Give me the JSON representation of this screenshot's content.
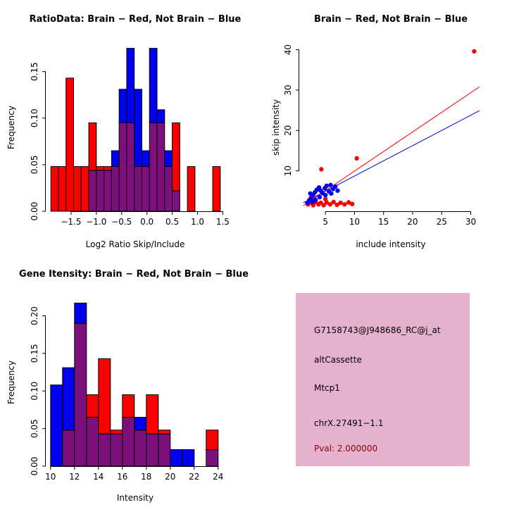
{
  "colors": {
    "red": "#fb0000",
    "blue": "#0000f0",
    "overlap": "#7d107d",
    "axis": "#000000",
    "info_bg": "#e4b2cc",
    "pval_text": "#8b0000"
  },
  "chart_data": [
    {
      "type": "histogram",
      "title": "RatioData: Brain − Red, Not Brain − Blue",
      "xlabel": "Log2 Ratio Skip/Include",
      "ylabel": "Frequency",
      "xlim": [
        -2.0,
        1.55
      ],
      "ylim": [
        0,
        0.18
      ],
      "xticks": [
        -1.5,
        -1.0,
        -0.5,
        0.0,
        0.5,
        1.0,
        1.5
      ],
      "xtick_labels": [
        "−1.5",
        "−1.0",
        "−0.5",
        "0.0",
        "0.5",
        "1.0",
        "1.5"
      ],
      "yticks": [
        0,
        0.05,
        0.1,
        0.15
      ],
      "ytick_labels": [
        "0.00",
        "0.05",
        "0.10",
        "0.15"
      ],
      "bin_width": 0.15,
      "grid": false,
      "series": [
        {
          "name": "Brain",
          "color": "red",
          "bars": [
            [
              -1.9,
              0.048
            ],
            [
              -1.75,
              0.048
            ],
            [
              -1.6,
              0.143
            ],
            [
              -1.45,
              0.048
            ],
            [
              -1.3,
              0.048
            ],
            [
              -1.15,
              0.095
            ],
            [
              -1.0,
              0.048
            ],
            [
              -0.85,
              0.048
            ],
            [
              -0.7,
              0.048
            ],
            [
              -0.55,
              0.095
            ],
            [
              -0.4,
              0.095
            ],
            [
              -0.25,
              0.048
            ],
            [
              -0.1,
              0.048
            ],
            [
              0.05,
              0.095
            ],
            [
              0.2,
              0.095
            ],
            [
              0.35,
              0.048
            ],
            [
              0.5,
              0.095
            ],
            [
              0.8,
              0.048
            ],
            [
              1.3,
              0.048
            ]
          ]
        },
        {
          "name": "Not Brain",
          "color": "blue",
          "bars": [
            [
              -1.15,
              0.044
            ],
            [
              -1.0,
              0.044
            ],
            [
              -0.85,
              0.044
            ],
            [
              -0.7,
              0.065
            ],
            [
              -0.55,
              0.131
            ],
            [
              -0.4,
              0.175
            ],
            [
              -0.25,
              0.131
            ],
            [
              -0.1,
              0.065
            ],
            [
              0.05,
              0.175
            ],
            [
              0.2,
              0.109
            ],
            [
              0.35,
              0.065
            ],
            [
              0.5,
              0.022
            ]
          ]
        }
      ]
    },
    {
      "type": "scatter",
      "title": "Brain − Red, Not Brain − Blue",
      "xlabel": "include intensity",
      "ylabel": "skip intensity",
      "xlim": [
        0.5,
        32
      ],
      "ylim": [
        0,
        41.5
      ],
      "xticks": [
        5,
        10,
        15,
        20,
        25,
        30
      ],
      "xtick_labels": [
        "5",
        "10",
        "15",
        "20",
        "25",
        "30"
      ],
      "yticks": [
        10,
        20,
        30,
        40
      ],
      "ytick_labels": [
        "10",
        "20",
        "30",
        "40"
      ],
      "grid": false,
      "series": [
        {
          "name": "Brain",
          "color": "red",
          "points": [
            [
              30.6,
              39.6
            ],
            [
              10.4,
              13.1
            ],
            [
              4.3,
              10.4
            ],
            [
              2.0,
              1.7
            ],
            [
              2.4,
              2.1
            ],
            [
              2.9,
              1.5
            ],
            [
              3.3,
              2.3
            ],
            [
              3.8,
              1.7
            ],
            [
              4.2,
              2.1
            ],
            [
              4.7,
              1.5
            ],
            [
              5.2,
              2.2
            ],
            [
              5.8,
              1.7
            ],
            [
              6.4,
              2.3
            ],
            [
              7.0,
              1.6
            ],
            [
              7.6,
              2.1
            ],
            [
              8.3,
              1.7
            ],
            [
              9.0,
              2.2
            ],
            [
              9.6,
              1.8
            ],
            [
              3.1,
              3.1
            ],
            [
              2.3,
              2.7
            ],
            [
              5.0,
              3.0
            ]
          ]
        },
        {
          "name": "Not Brain",
          "color": "blue",
          "points": [
            [
              1.9,
              2.1
            ],
            [
              2.2,
              2.7
            ],
            [
              2.5,
              3.3
            ],
            [
              2.9,
              4.1
            ],
            [
              3.2,
              4.7
            ],
            [
              3.5,
              5.3
            ],
            [
              3.9,
              5.9
            ],
            [
              4.2,
              5.1
            ],
            [
              4.5,
              4.5
            ],
            [
              4.9,
              5.7
            ],
            [
              5.2,
              6.3
            ],
            [
              5.6,
              4.9
            ],
            [
              5.9,
              6.5
            ],
            [
              6.3,
              5.5
            ],
            [
              6.7,
              6.1
            ],
            [
              7.1,
              5.1
            ],
            [
              4.0,
              3.5
            ],
            [
              3.3,
              2.8
            ],
            [
              2.8,
              2.3
            ],
            [
              5.0,
              4.0
            ],
            [
              6.0,
              4.4
            ],
            [
              2.4,
              4.4
            ]
          ]
        }
      ],
      "lines": [
        {
          "name": "brain-fit-line",
          "color": "red",
          "x1": 1.2,
          "y1": 1.4,
          "x2": 31.5,
          "y2": 30.8
        },
        {
          "name": "notbrain-fit-line",
          "color": "blue",
          "x1": 1.2,
          "y1": 2.1,
          "x2": 31.5,
          "y2": 24.9
        }
      ]
    },
    {
      "type": "histogram",
      "title": "Gene Itensity: Brain − Red, Not Brain − Blue",
      "xlabel": "Intensity",
      "ylabel": "Frequency",
      "xlim": [
        9.6,
        24.6
      ],
      "ylim": [
        0,
        0.222
      ],
      "xticks": [
        10,
        12,
        14,
        16,
        18,
        20,
        22,
        24
      ],
      "xtick_labels": [
        "10",
        "12",
        "14",
        "16",
        "18",
        "20",
        "22",
        "24"
      ],
      "yticks": [
        0,
        0.05,
        0.1,
        0.15,
        0.2
      ],
      "ytick_labels": [
        "0.00",
        "0.05",
        "0.10",
        "0.15",
        "0.20"
      ],
      "bin_width": 1,
      "grid": false,
      "series": [
        {
          "name": "Brain",
          "color": "red",
          "bars": [
            [
              11,
              0.048
            ],
            [
              12,
              0.19
            ],
            [
              13,
              0.095
            ],
            [
              14,
              0.143
            ],
            [
              15,
              0.048
            ],
            [
              16,
              0.095
            ],
            [
              17,
              0.048
            ],
            [
              18,
              0.095
            ],
            [
              19,
              0.048
            ],
            [
              23,
              0.048
            ]
          ]
        },
        {
          "name": "Not Brain",
          "color": "blue",
          "bars": [
            [
              10,
              0.108
            ],
            [
              11,
              0.131
            ],
            [
              12,
              0.217
            ],
            [
              13,
              0.065
            ],
            [
              14,
              0.043
            ],
            [
              15,
              0.043
            ],
            [
              16,
              0.065
            ],
            [
              17,
              0.065
            ],
            [
              18,
              0.043
            ],
            [
              19,
              0.043
            ],
            [
              20,
              0.022
            ],
            [
              21,
              0.022
            ],
            [
              23,
              0.022
            ]
          ]
        }
      ]
    }
  ],
  "info_panel": {
    "probe_id": "G7158743@J948686_RC@j_at",
    "event_type": "altCassette",
    "gene": "Mtcp1",
    "location": "chrX.27491−1.1",
    "pval": "Pval: 2.000000"
  }
}
